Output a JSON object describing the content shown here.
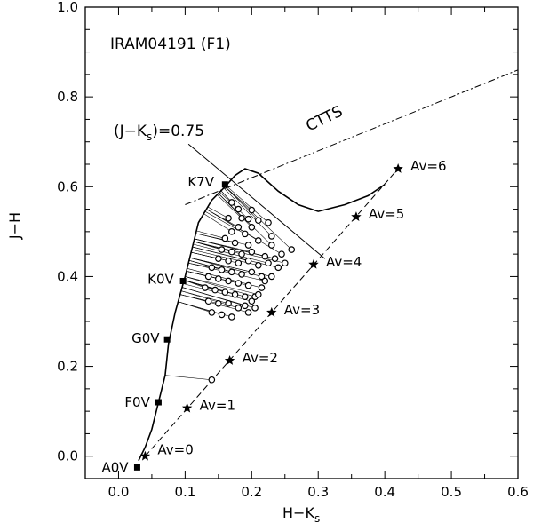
{
  "chart_data": {
    "type": "scatter",
    "title": "IRAM04191 (F1)",
    "xlabel_main": "H−K",
    "xlabel_sub": "s",
    "ylabel": "J−H",
    "xlim": [
      -0.05,
      0.6
    ],
    "ylim": [
      -0.05,
      1.0
    ],
    "x_ticks": [
      0.0,
      0.1,
      0.2,
      0.3,
      0.4,
      0.5,
      0.6
    ],
    "x_tick_labels": [
      "0.0",
      "0.1",
      "0.2",
      "0.3",
      "0.4",
      "0.5",
      "0.6"
    ],
    "y_ticks": [
      0.0,
      0.2,
      0.4,
      0.6,
      0.8,
      1.0
    ],
    "y_tick_labels": [
      "0.0",
      "0.2",
      "0.4",
      "0.6",
      "0.8",
      "1.0"
    ],
    "jks_label_pre": "(J−K",
    "jks_label_sub": "s",
    "jks_label_post": ")=0.75",
    "ctts_label": "CTTS",
    "dwarf_locus": [
      [
        0.03,
        -0.01
      ],
      [
        0.04,
        0.02
      ],
      [
        0.05,
        0.06
      ],
      [
        0.06,
        0.12
      ],
      [
        0.07,
        0.18
      ],
      [
        0.075,
        0.25
      ],
      [
        0.085,
        0.32
      ],
      [
        0.1,
        0.4
      ],
      [
        0.11,
        0.46
      ],
      [
        0.12,
        0.52
      ],
      [
        0.14,
        0.57
      ],
      [
        0.16,
        0.6
      ],
      [
        0.175,
        0.625
      ],
      [
        0.19,
        0.64
      ],
      [
        0.21,
        0.63
      ],
      [
        0.24,
        0.59
      ],
      [
        0.27,
        0.56
      ],
      [
        0.3,
        0.545
      ],
      [
        0.34,
        0.56
      ],
      [
        0.375,
        0.58
      ],
      [
        0.4,
        0.605
      ]
    ],
    "spectral_types": [
      {
        "label": "A0V",
        "x": 0.028,
        "y": -0.025
      },
      {
        "label": "F0V",
        "x": 0.06,
        "y": 0.12
      },
      {
        "label": "G0V",
        "x": 0.073,
        "y": 0.26
      },
      {
        "label": "K0V",
        "x": 0.097,
        "y": 0.39
      },
      {
        "label": "K7V",
        "x": 0.16,
        "y": 0.605
      }
    ],
    "ctts_line": [
      [
        0.1,
        0.56
      ],
      [
        0.6,
        0.86
      ]
    ],
    "reddening_vector": [
      [
        0.04,
        0.0
      ],
      [
        0.42,
        0.64
      ]
    ],
    "av_markers": [
      {
        "label": "Av=0",
        "x": 0.04,
        "y": 0.0
      },
      {
        "label": "Av=1",
        "x": 0.103,
        "y": 0.107
      },
      {
        "label": "Av=2",
        "x": 0.167,
        "y": 0.213
      },
      {
        "label": "Av=3",
        "x": 0.23,
        "y": 0.32
      },
      {
        "label": "Av=4",
        "x": 0.293,
        "y": 0.427
      },
      {
        "label": "Av=5",
        "x": 0.357,
        "y": 0.533
      },
      {
        "label": "Av=6",
        "x": 0.42,
        "y": 0.64
      }
    ],
    "jks_line": [
      [
        0.105,
        0.695
      ],
      [
        0.31,
        0.44
      ]
    ],
    "sources": [
      [
        0.14,
        0.17
      ],
      [
        0.17,
        0.565
      ],
      [
        0.18,
        0.55
      ],
      [
        0.2,
        0.548
      ],
      [
        0.185,
        0.53
      ],
      [
        0.165,
        0.53
      ],
      [
        0.195,
        0.528
      ],
      [
        0.21,
        0.525
      ],
      [
        0.18,
        0.51
      ],
      [
        0.2,
        0.51
      ],
      [
        0.225,
        0.52
      ],
      [
        0.17,
        0.5
      ],
      [
        0.19,
        0.495
      ],
      [
        0.23,
        0.49
      ],
      [
        0.16,
        0.485
      ],
      [
        0.175,
        0.475
      ],
      [
        0.195,
        0.47
      ],
      [
        0.21,
        0.48
      ],
      [
        0.23,
        0.47
      ],
      [
        0.155,
        0.46
      ],
      [
        0.17,
        0.455
      ],
      [
        0.185,
        0.45
      ],
      [
        0.2,
        0.455
      ],
      [
        0.22,
        0.445
      ],
      [
        0.15,
        0.44
      ],
      [
        0.165,
        0.435
      ],
      [
        0.18,
        0.43
      ],
      [
        0.195,
        0.435
      ],
      [
        0.21,
        0.425
      ],
      [
        0.14,
        0.42
      ],
      [
        0.155,
        0.415
      ],
      [
        0.17,
        0.41
      ],
      [
        0.185,
        0.405
      ],
      [
        0.2,
        0.41
      ],
      [
        0.215,
        0.4
      ],
      [
        0.135,
        0.4
      ],
      [
        0.15,
        0.395
      ],
      [
        0.165,
        0.39
      ],
      [
        0.18,
        0.385
      ],
      [
        0.195,
        0.38
      ],
      [
        0.13,
        0.375
      ],
      [
        0.145,
        0.37
      ],
      [
        0.16,
        0.365
      ],
      [
        0.175,
        0.36
      ],
      [
        0.19,
        0.355
      ],
      [
        0.135,
        0.345
      ],
      [
        0.15,
        0.34
      ],
      [
        0.165,
        0.34
      ],
      [
        0.18,
        0.33
      ],
      [
        0.14,
        0.32
      ],
      [
        0.155,
        0.315
      ],
      [
        0.17,
        0.31
      ],
      [
        0.19,
        0.335
      ],
      [
        0.205,
        0.355
      ],
      [
        0.215,
        0.375
      ],
      [
        0.23,
        0.4
      ],
      [
        0.24,
        0.42
      ],
      [
        0.25,
        0.43
      ],
      [
        0.26,
        0.46
      ],
      [
        0.245,
        0.45
      ],
      [
        0.235,
        0.44
      ],
      [
        0.225,
        0.43
      ],
      [
        0.22,
        0.39
      ],
      [
        0.21,
        0.36
      ],
      [
        0.2,
        0.345
      ],
      [
        0.195,
        0.32
      ],
      [
        0.205,
        0.33
      ]
    ]
  }
}
